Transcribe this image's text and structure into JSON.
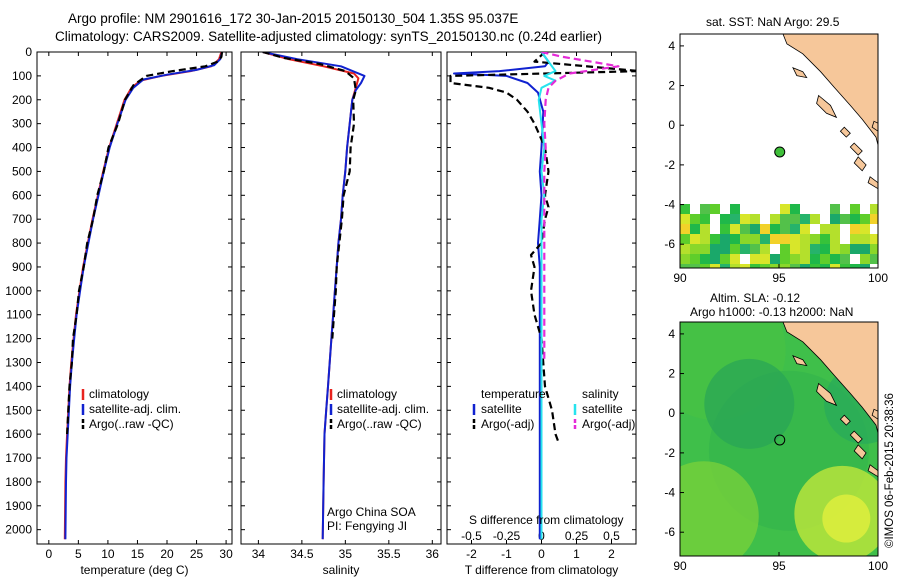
{
  "header": {
    "line1": "Argo profile: NM 2901616_172 30-Jan-2015 20150130_504 1.35S 95.037E",
    "line2": "Climatology: CARS2009. Satellite-adjusted climatology: synTS_20150130.nc (0.24d earlier)"
  },
  "colors": {
    "climatology": "#e8231e",
    "satellite": "#1022d0",
    "argo": "#000000",
    "sal_satellite": "#27e3ee",
    "sal_argo": "#e52ad7"
  },
  "chart_data": [
    {
      "type": "line",
      "xlabel": "temperature (deg C)",
      "ylabel": "",
      "xlim": [
        -2,
        31
      ],
      "ylim": [
        2060,
        0
      ],
      "xticks": [
        0,
        5,
        10,
        15,
        20,
        25,
        30
      ],
      "yticks": [
        0,
        100,
        200,
        300,
        400,
        500,
        600,
        700,
        800,
        900,
        1000,
        1100,
        1200,
        1300,
        1400,
        1500,
        1600,
        1700,
        1800,
        1900,
        2000
      ],
      "legend": [
        "climatology",
        "satellite-adj. clim.",
        "Argo(..raw -QC)"
      ],
      "legend_placement": "bottom-right",
      "series": [
        {
          "name": "climatology",
          "color": "#e8231e",
          "dash": "solid",
          "x": [
            29.2,
            28.8,
            27.5,
            24,
            19,
            15.5,
            14,
            12.8,
            11.5,
            10.2,
            9.2,
            8.3,
            7.4,
            6.6,
            5.8,
            5.2,
            4.6,
            4.2,
            3.8,
            3.5,
            3.3,
            3.1,
            2.9,
            2.8,
            2.7
          ],
          "y": [
            0,
            30,
            60,
            80,
            100,
            120,
            150,
            200,
            300,
            400,
            500,
            600,
            700,
            800,
            900,
            1000,
            1100,
            1200,
            1300,
            1400,
            1500,
            1600,
            1700,
            1800,
            2040
          ]
        },
        {
          "name": "satellite-adj. clim.",
          "color": "#1022d0",
          "dash": "solid",
          "x": [
            29.3,
            29,
            28,
            25,
            20,
            16,
            14.3,
            13,
            11.6,
            10.3,
            9.3,
            8.4,
            7.5,
            6.7,
            5.9,
            5.3,
            4.7,
            4.3,
            3.9,
            3.6,
            3.4,
            3.2,
            3.0,
            2.9,
            2.8
          ],
          "y": [
            0,
            30,
            55,
            75,
            95,
            115,
            150,
            200,
            300,
            400,
            500,
            600,
            700,
            800,
            900,
            1000,
            1100,
            1200,
            1300,
            1400,
            1500,
            1600,
            1700,
            1800,
            2040
          ]
        },
        {
          "name": "Argo(..raw -QC)",
          "color": "#000000",
          "dash": "dashed",
          "x": [
            29.3,
            29.2,
            28.6,
            26.5,
            21,
            16.5,
            14.3,
            12.9,
            11.7,
            10.1,
            9.3,
            8.2,
            7.5,
            6.5,
            5.9,
            5.1,
            4.7,
            4.1,
            3.9,
            3.5,
            3.3,
            3.1
          ],
          "y": [
            0,
            20,
            40,
            60,
            80,
            100,
            140,
            200,
            300,
            400,
            500,
            600,
            700,
            800,
            900,
            1000,
            1100,
            1200,
            1300,
            1400,
            1500,
            1600
          ]
        }
      ]
    },
    {
      "type": "line",
      "xlabel": "salinity",
      "xlim": [
        33.8,
        36.1
      ],
      "ylim": [
        2060,
        0
      ],
      "xticks": [
        34,
        34.5,
        35,
        35.5,
        36
      ],
      "legend": [
        "climatology",
        "satellite-adj. clim.",
        "Argo(..raw -QC)"
      ],
      "legend_placement": "bottom-right",
      "annotations": [
        "Argo China SOA",
        "PI: Fengying JI"
      ],
      "series": [
        {
          "name": "climatology",
          "color": "#e8231e",
          "dash": "solid",
          "x": [
            34.05,
            34.35,
            34.75,
            35.1,
            35.15,
            35.12,
            35.08,
            35.05,
            35.02,
            35.0,
            34.97,
            34.95,
            34.92,
            34.9,
            34.88,
            34.86,
            34.84,
            34.82,
            34.8,
            34.78,
            34.76,
            34.75,
            34.74
          ],
          "y": [
            0,
            30,
            60,
            90,
            110,
            150,
            200,
            300,
            400,
            500,
            600,
            700,
            800,
            900,
            1000,
            1100,
            1200,
            1300,
            1400,
            1500,
            1600,
            1800,
            2040
          ]
        },
        {
          "name": "satellite-adj. clim.",
          "color": "#1022d0",
          "dash": "solid",
          "x": [
            34.05,
            34.45,
            34.95,
            35.22,
            35.18,
            35.12,
            35.08,
            35.05,
            35.02,
            35.0,
            34.97,
            34.95,
            34.92,
            34.9,
            34.88,
            34.86,
            34.84,
            34.82,
            34.8,
            34.78,
            34.76,
            34.75,
            34.74
          ],
          "y": [
            0,
            30,
            60,
            100,
            130,
            160,
            200,
            300,
            400,
            500,
            600,
            700,
            800,
            900,
            1000,
            1100,
            1200,
            1300,
            1400,
            1500,
            1600,
            1800,
            2040
          ]
        },
        {
          "name": "Argo(..raw -QC)",
          "color": "#000000",
          "dash": "dashed",
          "x": [
            34.05,
            34.3,
            34.7,
            35.0,
            35.1,
            35.12,
            35.09,
            35.1,
            35.06,
            35.05,
            34.98,
            34.96,
            34.93,
            34.9,
            34.89,
            34.87,
            34.85
          ],
          "y": [
            0,
            25,
            50,
            80,
            110,
            160,
            200,
            300,
            400,
            500,
            600,
            700,
            800,
            900,
            1000,
            1100,
            1200
          ]
        }
      ]
    },
    {
      "type": "line",
      "xlabel": "T difference from climatology",
      "xlabel_top": "S difference from climatology",
      "xlim": [
        -2.7,
        2.7
      ],
      "ylim": [
        2060,
        0
      ],
      "xticks": [
        -2,
        -1,
        0,
        1,
        2
      ],
      "xticks_top": [
        -0.5,
        -0.25,
        0,
        0.25,
        0.5
      ],
      "legend_temperature": {
        "title": "temperature",
        "items": [
          "satellite",
          "Argo(-adj)"
        ]
      },
      "legend_salinity": {
        "title": "salinity",
        "items": [
          "satellite",
          "Argo(-adj)"
        ]
      },
      "legend_placement": "bottom",
      "series": [
        {
          "name": "satellite",
          "group": "temperature",
          "color": "#1022d0",
          "dash": "solid",
          "x": [
            0,
            0.2,
            0.1,
            -1.2,
            -2.5,
            -1,
            -0.4,
            -0.1,
            0.05,
            0,
            -0.05,
            0,
            -0.05,
            -0.1,
            -0.05,
            -0.05,
            -0.05,
            -0.05,
            -0.05,
            -0.05,
            -0.05,
            -0.05,
            -0.05,
            -0.05,
            -0.05,
            -0.05
          ],
          "y": [
            0,
            40,
            60,
            80,
            90,
            100,
            130,
            170,
            250,
            400,
            500,
            600,
            700,
            800,
            900,
            1000,
            1100,
            1200,
            1300,
            1400,
            1500,
            1600,
            1700,
            1800,
            1900,
            2040
          ]
        },
        {
          "name": "Argo(-adj)",
          "group": "temperature",
          "color": "#000000",
          "dash": "dashed",
          "x": [
            0.1,
            -0.2,
            2.8,
            -2.6,
            -2.6,
            -1.5,
            -1.0,
            -0.7,
            -0.4,
            -0.2,
            0.1,
            0.2,
            0.1,
            0.2,
            0.1,
            0.0,
            -0.3,
            -0.2,
            -0.3,
            -0.2,
            0.0,
            0.1,
            0.3,
            0.4,
            0.5
          ],
          "y": [
            0,
            40,
            80,
            100,
            130,
            150,
            170,
            200,
            250,
            300,
            400,
            500,
            600,
            650,
            700,
            800,
            850,
            900,
            1000,
            1100,
            1200,
            1400,
            1500,
            1600,
            1640
          ]
        },
        {
          "name": "satellite",
          "group": "salinity",
          "color": "#27e3ee",
          "dash": "solid",
          "x": [
            0,
            0.05,
            0.1,
            0.02,
            0.1,
            0.0,
            -0.02,
            0.0,
            0.02,
            0.0,
            0.02,
            0.0,
            0.0,
            0.0,
            0.0,
            0.0,
            0.0,
            0.0,
            0.0,
            0.0,
            0.0,
            0.0,
            0.0,
            0.0
          ],
          "y": [
            0,
            40,
            80,
            100,
            120,
            150,
            200,
            300,
            400,
            500,
            600,
            700,
            800,
            900,
            1000,
            1100,
            1200,
            1300,
            1400,
            1500,
            1600,
            1700,
            1800,
            2040
          ]
        },
        {
          "name": "Argo(-adj)",
          "group": "salinity",
          "color": "#e52ad7",
          "dash": "dashed",
          "x": [
            0,
            0.15,
            0.55,
            0.2,
            0.1,
            0.05,
            0.03,
            0.02,
            0.03,
            0.02,
            0.02,
            0.02,
            0.02,
            0.02,
            0.02,
            0.02,
            0.02,
            0.02
          ],
          "y": [
            0,
            20,
            60,
            90,
            120,
            150,
            200,
            300,
            400,
            500,
            600,
            700,
            800,
            900,
            1000,
            1100,
            1200,
            1300
          ]
        }
      ]
    },
    {
      "type": "heatmap",
      "title": "sat. SST: NaN Argo: 29.5",
      "xlim": [
        90,
        100
      ],
      "ylim": [
        -7.2,
        4.6
      ],
      "xticks": [
        90,
        95,
        100
      ],
      "yticks": [
        -6,
        -4,
        -2,
        0,
        2,
        4
      ],
      "argo_position": {
        "lon": 95.037,
        "lat": -1.35
      }
    },
    {
      "type": "heatmap",
      "title": "Altim. SLA: -0.12",
      "subtitle": "Argo h1000: -0.13 h2000: NaN",
      "xlim": [
        90,
        100
      ],
      "ylim": [
        -7.2,
        4.6
      ],
      "xticks": [
        90,
        95,
        100
      ],
      "yticks": [
        -6,
        -4,
        -2,
        0,
        2,
        4
      ],
      "argo_position": {
        "lon": 95.037,
        "lat": -1.35
      }
    }
  ],
  "credit": "©IMOS 06-Feb-2015 20:38:36"
}
